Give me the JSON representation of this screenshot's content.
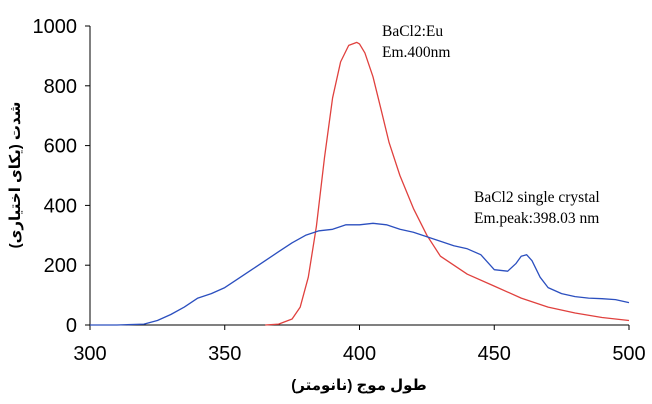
{
  "chart_data": {
    "type": "line",
    "title": "",
    "xlabel": "طول موج (نانومتر)",
    "ylabel": "شدت (یکای اختیاری)",
    "xlim": [
      300,
      500
    ],
    "ylim": [
      0,
      1000
    ],
    "x_ticks": [
      "300",
      "350",
      "400",
      "450",
      "500"
    ],
    "y_ticks": [
      "0",
      "200",
      "400",
      "600",
      "800",
      "1000"
    ],
    "grid": false,
    "legend": "none",
    "annotations": [
      {
        "lines": [
          "BaCl2:Eu",
          "Em.400nm"
        ],
        "for_series": "red"
      },
      {
        "lines": [
          "BaCl2 single crystal",
          "Em.peak:398.03 nm"
        ],
        "for_series": "blue"
      }
    ],
    "series": [
      {
        "color": "#e0413e",
        "x": [
          365,
          370,
          375,
          378,
          381,
          384,
          387,
          390,
          393,
          396,
          399,
          400,
          402,
          405,
          408,
          411,
          415,
          420,
          425,
          430,
          440,
          450,
          460,
          470,
          480,
          490,
          500
        ],
        "y": [
          0,
          3,
          20,
          60,
          160,
          330,
          560,
          760,
          880,
          935,
          945,
          940,
          910,
          830,
          720,
          610,
          500,
          390,
          300,
          230,
          170,
          130,
          90,
          60,
          40,
          25,
          15
        ]
      },
      {
        "color": "#2b4fbf",
        "x": [
          300,
          310,
          320,
          325,
          330,
          335,
          340,
          345,
          350,
          355,
          360,
          365,
          370,
          375,
          380,
          385,
          390,
          395,
          400,
          405,
          410,
          415,
          420,
          425,
          430,
          435,
          440,
          445,
          450,
          455,
          458,
          460,
          462,
          464,
          467,
          470,
          475,
          480,
          485,
          490,
          495,
          500
        ],
        "y": [
          0,
          0,
          3,
          15,
          35,
          60,
          90,
          105,
          125,
          155,
          185,
          215,
          245,
          275,
          300,
          315,
          320,
          335,
          335,
          340,
          335,
          320,
          310,
          295,
          280,
          265,
          255,
          235,
          185,
          180,
          205,
          230,
          235,
          215,
          160,
          125,
          105,
          95,
          90,
          88,
          85,
          75
        ]
      }
    ]
  }
}
